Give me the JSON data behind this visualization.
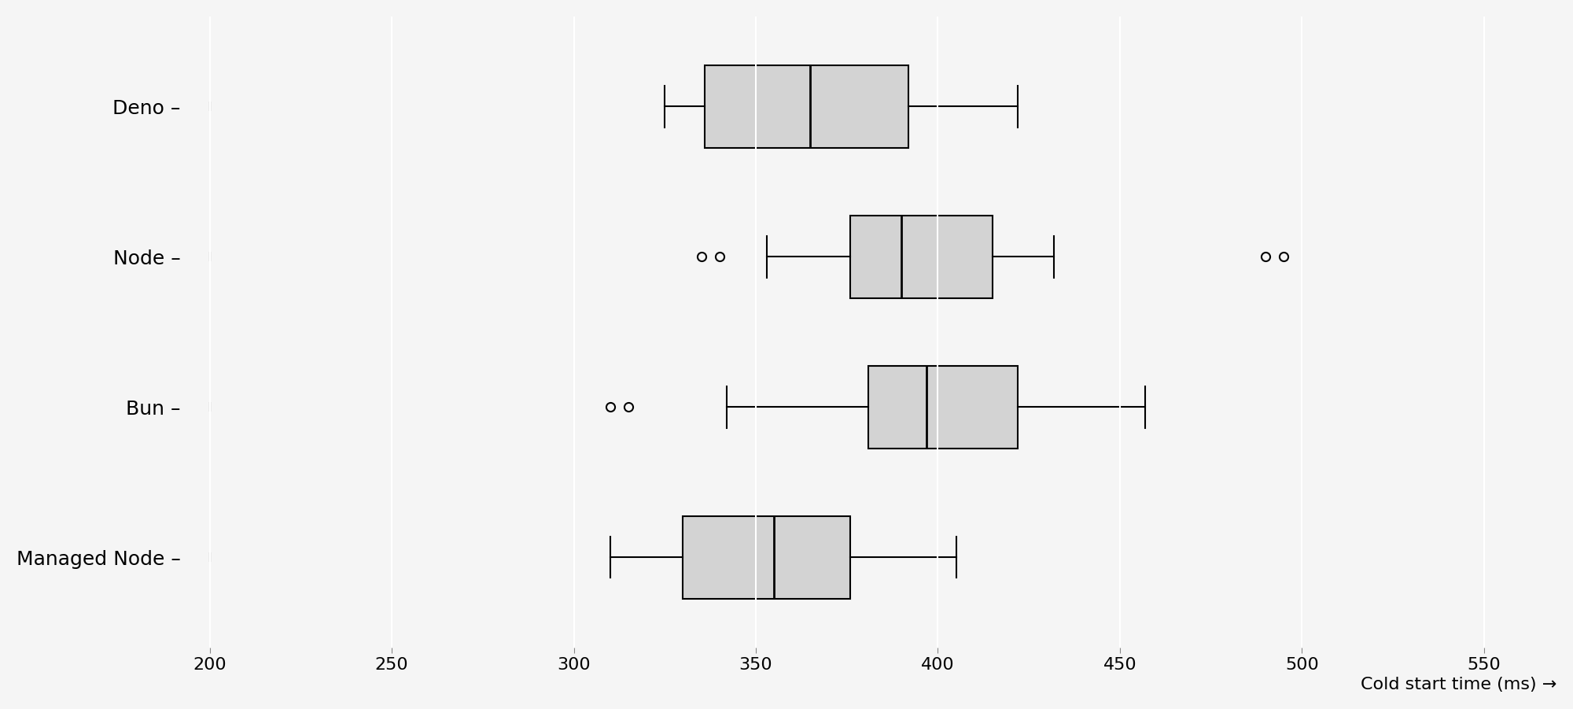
{
  "title": "",
  "xlabel": "Cold start time (ms) →",
  "categories": [
    "Deno",
    "Node",
    "Bun",
    "Managed Node"
  ],
  "boxes": [
    {
      "label": "Deno",
      "whislo": 325,
      "q1": 336,
      "med": 365,
      "q3": 392,
      "whishi": 422,
      "fliers": []
    },
    {
      "label": "Node",
      "whislo": 353,
      "q1": 376,
      "med": 390,
      "q3": 415,
      "whishi": 432,
      "fliers": [
        335,
        340,
        490,
        495
      ]
    },
    {
      "label": "Bun",
      "whislo": 342,
      "q1": 381,
      "med": 397,
      "q3": 422,
      "whishi": 457,
      "fliers": [
        310,
        315
      ]
    },
    {
      "label": "Managed Node",
      "whislo": 310,
      "q1": 330,
      "med": 355,
      "q3": 376,
      "whishi": 405,
      "fliers": []
    }
  ],
  "xlim": [
    195,
    570
  ],
  "xticks": [
    200,
    250,
    300,
    350,
    400,
    450,
    500,
    550
  ],
  "box_color": "#d3d3d3",
  "median_color": "#000000",
  "whisker_color": "#000000",
  "flier_color": "#000000",
  "background_color": "#f5f5f5",
  "grid_color": "#ffffff",
  "box_width": 0.55,
  "linewidth": 1.5,
  "median_linewidth": 2.0,
  "label_fontsize": 18,
  "tick_fontsize": 16,
  "xlabel_fontsize": 16
}
